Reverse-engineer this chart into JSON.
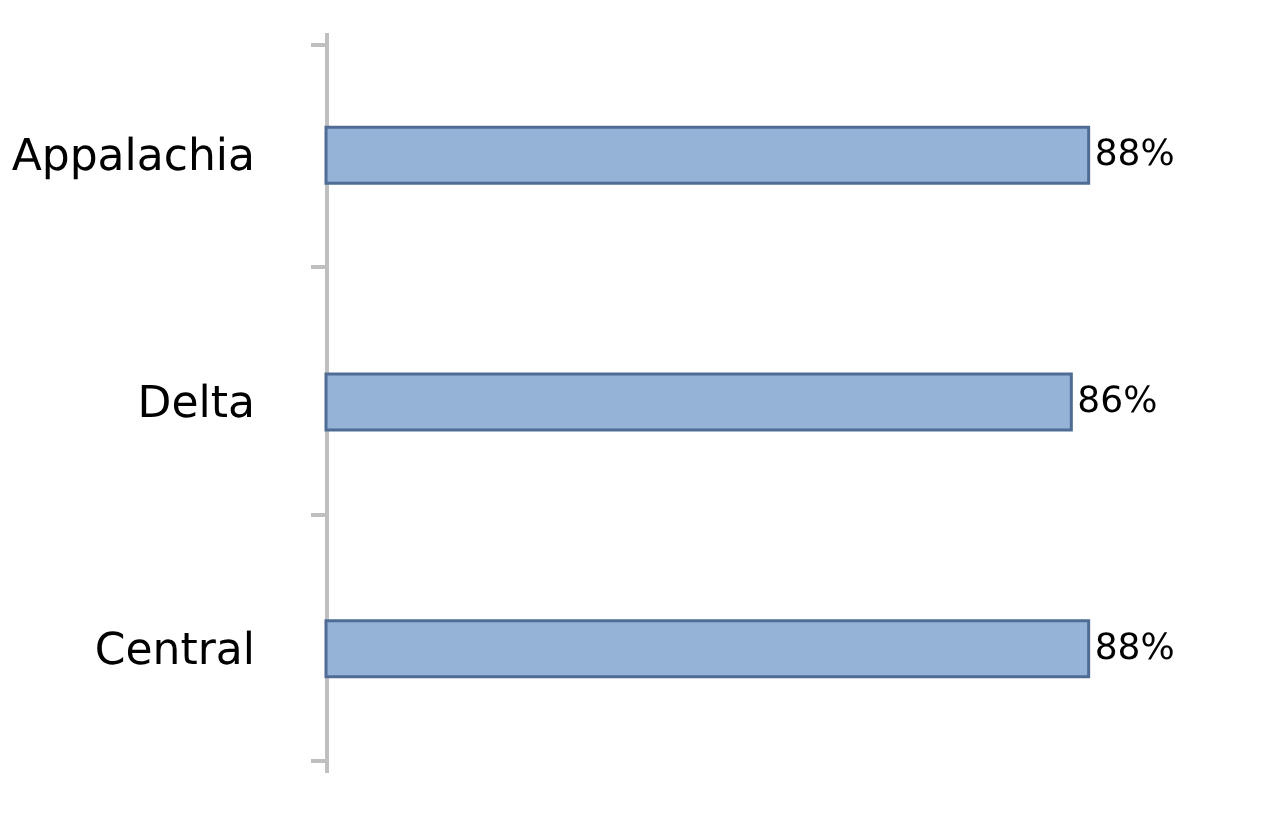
{
  "chart_data": {
    "type": "bar",
    "orientation": "horizontal",
    "categories": [
      "Appalachia",
      "Delta",
      "Central"
    ],
    "values": [
      88,
      86,
      88
    ],
    "color": "#95b3d7",
    "value_labels": [
      "88%",
      "86%",
      "88%"
    ],
    "grid": false,
    "tick_labels": "y"
  }
}
